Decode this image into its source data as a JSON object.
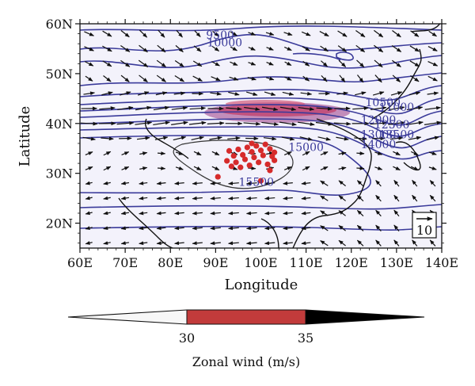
{
  "chart_data": {
    "type": "map",
    "xlabel": "Longitude",
    "ylabel": "Latitude",
    "x_ticks": [
      "60E",
      "70E",
      "80E",
      "90E",
      "100E",
      "110E",
      "120E",
      "130E",
      "140E"
    ],
    "y_ticks": [
      "20N",
      "30N",
      "40N",
      "50N",
      "60N"
    ],
    "xlim": [
      60,
      140
    ],
    "ylim": [
      15,
      60
    ],
    "contour_labels": [
      {
        "text": "9500",
        "lon": 91,
        "lat": 57
      },
      {
        "text": "10000",
        "lon": 92,
        "lat": 55.5
      },
      {
        "text": "15000",
        "lon": 110,
        "lat": 34.5
      },
      {
        "text": "15500",
        "lon": 99,
        "lat": 27.5
      },
      {
        "text": "10500",
        "lon": 127,
        "lat": 43.5
      },
      {
        "text": "11000",
        "lon": 130,
        "lat": 42.5
      },
      {
        "text": "12000",
        "lon": 126,
        "lat": 40
      },
      {
        "text": "12500",
        "lon": 129,
        "lat": 39
      },
      {
        "text": "13000",
        "lon": 126,
        "lat": 37
      },
      {
        "text": "13500",
        "lon": 130,
        "lat": 37
      },
      {
        "text": "14000",
        "lon": 126,
        "lat": 35
      }
    ],
    "reference_vector": "10",
    "shading": {
      "variable_label": "Zonal wind (m/s)",
      "levels": [
        30,
        35
      ],
      "level_labels": [
        "30",
        "35"
      ],
      "colors": [
        "#f7f7f7",
        "#c23b3b",
        "#000000"
      ]
    },
    "stations": [
      {
        "lon": 93,
        "lat": 34.5
      },
      {
        "lon": 94,
        "lat": 33.5
      },
      {
        "lon": 95,
        "lat": 34.8
      },
      {
        "lon": 96,
        "lat": 33.7
      },
      {
        "lon": 97,
        "lat": 35.2
      },
      {
        "lon": 98,
        "lat": 34.3
      },
      {
        "lon": 99,
        "lat": 35.5
      },
      {
        "lon": 100,
        "lat": 34.6
      },
      {
        "lon": 101,
        "lat": 35.8
      },
      {
        "lon": 102,
        "lat": 34.9
      },
      {
        "lon": 103,
        "lat": 34.2
      },
      {
        "lon": 92.5,
        "lat": 32.5
      },
      {
        "lon": 94.5,
        "lat": 32.2
      },
      {
        "lon": 96.5,
        "lat": 32.8
      },
      {
        "lon": 98.5,
        "lat": 33.2
      },
      {
        "lon": 100.5,
        "lat": 33.6
      },
      {
        "lon": 102.5,
        "lat": 33.4
      },
      {
        "lon": 97.5,
        "lat": 31.6
      },
      {
        "lon": 99.5,
        "lat": 32.2
      },
      {
        "lon": 101.5,
        "lat": 31.8
      },
      {
        "lon": 103,
        "lat": 32.6
      },
      {
        "lon": 90.5,
        "lat": 29.3
      },
      {
        "lon": 95.5,
        "lat": 31.2
      },
      {
        "lon": 100,
        "lat": 28.5
      },
      {
        "lon": 102,
        "lat": 30.6
      },
      {
        "lon": 93.5,
        "lat": 31.4
      },
      {
        "lon": 98,
        "lat": 36
      }
    ],
    "colors": {
      "contour": "#3a3a9a",
      "coast": "#111111",
      "station": "#d62b2b",
      "jet_fill": "#c85a8c",
      "map_bg": "#f3f2fb"
    }
  }
}
